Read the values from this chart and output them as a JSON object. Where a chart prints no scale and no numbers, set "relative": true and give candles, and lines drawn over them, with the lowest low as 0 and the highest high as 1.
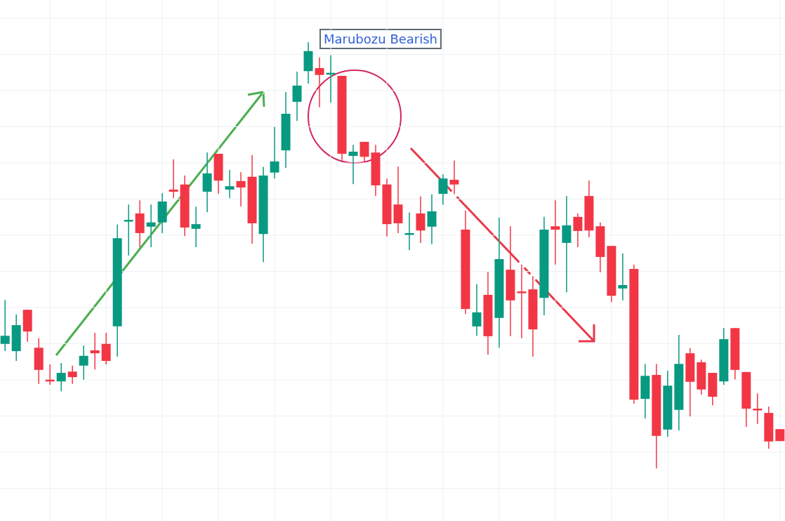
{
  "chart_data": {
    "type": "candlestick",
    "relative": true,
    "grid": true,
    "legend": false,
    "annotations": [
      "Marubozu Bearish"
    ],
    "categories": [
      null,
      null,
      null,
      null,
      null,
      null,
      null,
      null,
      null,
      null,
      null,
      null,
      null,
      null,
      null,
      null,
      null,
      null,
      null,
      null,
      null,
      null,
      null,
      null,
      null,
      null,
      null,
      null,
      null,
      null,
      null,
      null,
      null,
      null,
      null,
      null,
      null,
      null,
      null,
      null,
      null,
      null,
      null,
      null,
      null,
      null,
      null,
      null,
      null,
      null,
      null,
      null,
      null,
      null,
      null,
      null,
      null,
      null,
      null,
      null,
      null,
      null,
      null,
      null,
      null,
      null,
      null,
      null,
      null,
      null
    ],
    "ohlc": [
      [
        0.292,
        0.395,
        0.275,
        0.311
      ],
      [
        0.275,
        0.361,
        0.252,
        0.336
      ],
      [
        0.372,
        0.372,
        0.297,
        0.321
      ],
      [
        0.283,
        0.305,
        0.198,
        0.231
      ],
      [
        0.208,
        0.244,
        0.196,
        0.204
      ],
      [
        0.204,
        0.247,
        0.181,
        0.224
      ],
      [
        0.227,
        0.241,
        0.198,
        0.214
      ],
      [
        0.241,
        0.288,
        0.208,
        0.264
      ],
      [
        0.277,
        0.318,
        0.232,
        0.27
      ],
      [
        0.292,
        0.318,
        0.244,
        0.252
      ],
      [
        0.333,
        0.572,
        0.262,
        0.54
      ],
      [
        0.58,
        0.619,
        0.499,
        0.583
      ],
      [
        0.598,
        0.629,
        0.519,
        0.552
      ],
      [
        0.567,
        0.619,
        0.519,
        0.577
      ],
      [
        0.577,
        0.646,
        0.552,
        0.626
      ],
      [
        0.654,
        0.725,
        0.634,
        0.649
      ],
      [
        0.666,
        0.687,
        0.545,
        0.565
      ],
      [
        0.562,
        0.614,
        0.519,
        0.573
      ],
      [
        0.649,
        0.741,
        0.601,
        0.692
      ],
      [
        0.738,
        0.738,
        0.644,
        0.675
      ],
      [
        0.654,
        0.7,
        0.634,
        0.662
      ],
      [
        0.674,
        0.695,
        0.614,
        0.659
      ],
      [
        0.684,
        0.735,
        0.527,
        0.575
      ],
      [
        0.55,
        0.707,
        0.484,
        0.687
      ],
      [
        0.694,
        0.801,
        0.68,
        0.72
      ],
      [
        0.746,
        0.883,
        0.705,
        0.832
      ],
      [
        0.86,
        0.931,
        0.815,
        0.898
      ],
      [
        0.932,
        1,
        0.903,
        0.979
      ],
      [
        0.939,
        0.964,
        0.847,
        0.923
      ],
      [
        0.924,
        0.969,
        0.858,
        0.928
      ],
      [
        0.921,
        0.921,
        0.722,
        0.738
      ],
      [
        0.733,
        0.759,
        0.667,
        0.743
      ],
      [
        0.766,
        0.766,
        0.72,
        0.731
      ],
      [
        0.741,
        0.759,
        0.639,
        0.664
      ],
      [
        0.666,
        0.68,
        0.544,
        0.573
      ],
      [
        0.619,
        0.708,
        0.552,
        0.575
      ],
      [
        0.549,
        0.6,
        0.512,
        0.552
      ],
      [
        0.598,
        0.638,
        0.529,
        0.558
      ],
      [
        0.567,
        0.643,
        0.526,
        0.603
      ],
      [
        0.644,
        0.69,
        0.618,
        0.68
      ],
      [
        0.677,
        0.722,
        0.643,
        0.666
      ],
      [
        0.56,
        0.605,
        0.362,
        0.374
      ],
      [
        0.333,
        0.432,
        0.311,
        0.366
      ],
      [
        0.407,
        0.461,
        0.267,
        0.31
      ],
      [
        0.353,
        0.588,
        0.283,
        0.491
      ],
      [
        0.466,
        0.568,
        0.31,
        0.394
      ],
      [
        0.415,
        0.478,
        0.305,
        0.412
      ],
      [
        0.42,
        0.451,
        0.262,
        0.326
      ],
      [
        0.4,
        0.59,
        0.359,
        0.56
      ],
      [
        0.568,
        0.629,
        0.478,
        0.56
      ],
      [
        0.529,
        0.639,
        0.413,
        0.57
      ],
      [
        0.59,
        0.598,
        0.519,
        0.557
      ],
      [
        0.639,
        0.675,
        0.542,
        0.558
      ],
      [
        0.568,
        0.577,
        0.46,
        0.496
      ],
      [
        0.522,
        0.522,
        0.39,
        0.405
      ],
      [
        0.422,
        0.504,
        0.394,
        0.43
      ],
      [
        0.468,
        0.478,
        0.152,
        0.161
      ],
      [
        0.163,
        0.245,
        0.117,
        0.217
      ],
      [
        0.219,
        0.245,
        0,
        0.076
      ],
      [
        0.091,
        0.229,
        0.074,
        0.194
      ],
      [
        0.137,
        0.313,
        0.089,
        0.245
      ],
      [
        0.27,
        0.282,
        0.122,
        0.203
      ],
      [
        0.249,
        0.255,
        0.173,
        0.185
      ],
      [
        0.224,
        0.224,
        0.148,
        0.168
      ],
      [
        0.204,
        0.329,
        0.196,
        0.303
      ],
      [
        0.329,
        0.329,
        0.209,
        0.231
      ],
      [
        0.226,
        0.226,
        0.097,
        0.14
      ],
      [
        0.14,
        0.176,
        0.104,
        0.137
      ],
      [
        0.13,
        0.145,
        0.046,
        0.063
      ],
      [
        0.092,
        0.092,
        0.064,
        0.064
      ]
    ],
    "colors": [
      "#089981",
      "#089981",
      "#f23645",
      "#f23645",
      "#f23645",
      "#089981",
      "#f23645",
      "#089981",
      "#f23645",
      "#f23645",
      "#089981",
      "#089981",
      "#f23645",
      "#089981",
      "#089981",
      "#f23645",
      "#f23645",
      "#089981",
      "#089981",
      "#f23645",
      "#089981",
      "#f23645",
      "#f23645",
      "#089981",
      "#089981",
      "#089981",
      "#089981",
      "#089981",
      "#f23645",
      "#089981",
      "#f23645",
      "#089981",
      "#f23645",
      "#f23645",
      "#f23645",
      "#f23645",
      "#089981",
      "#f23645",
      "#089981",
      "#089981",
      "#f23645",
      "#f23645",
      "#089981",
      "#f23645",
      "#089981",
      "#f23645",
      "#f23645",
      "#f23645",
      "#089981",
      "#f23645",
      "#089981",
      "#f23645",
      "#f23645",
      "#f23645",
      "#f23645",
      "#089981",
      "#f23645",
      "#089981",
      "#f23645",
      "#089981",
      "#089981",
      "#f23645",
      "#f23645",
      "#f23645",
      "#089981",
      "#f23645",
      "#f23645",
      "#f23645",
      "#f23645",
      "#f23645"
    ]
  }
}
